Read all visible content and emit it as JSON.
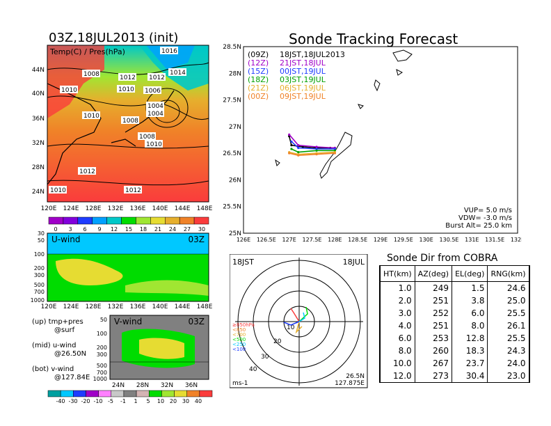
{
  "map_panel": {
    "title": "03Z,18JUL2013 (init)",
    "subtitle": "Temp(C) / Pres(hPa)",
    "lat_labels": [
      "44N",
      "40N",
      "36N",
      "32N",
      "28N",
      "24N"
    ],
    "lon_labels": [
      "120E",
      "124E",
      "128E",
      "132E",
      "136E",
      "140E",
      "144E",
      "148E"
    ],
    "isobar_labels": [
      "1016",
      "1008",
      "1012",
      "1012",
      "1014",
      "1010",
      "1010",
      "1006",
      "1004",
      "1004",
      "1010",
      "1008",
      "1008",
      "1010",
      "1012",
      "1010",
      "1012"
    ],
    "colorbar_ticks": [
      "0",
      "3",
      "6",
      "9",
      "12",
      "15",
      "18",
      "21",
      "24",
      "27",
      "30"
    ],
    "colors": [
      "#a000c8",
      "#8200dc",
      "#1e3cff",
      "#00a0ff",
      "#00c8c8",
      "#00dc00",
      "#a0e632",
      "#e6dc32",
      "#e6af2d",
      "#f08228",
      "#fa3c3c"
    ]
  },
  "uwind_panel": {
    "label": "U-wind",
    "time": "03Z",
    "pressure_labels": [
      "30",
      "50",
      "100",
      "200",
      "300",
      "500",
      "700",
      "1000"
    ],
    "lon_labels": [
      "120E",
      "124E",
      "128E",
      "132E",
      "136E",
      "140E",
      "144E",
      "148E"
    ]
  },
  "vwind_panel": {
    "label": "V-wind",
    "time": "03Z",
    "pressure_labels": [
      "50",
      "100",
      "200",
      "300",
      "500",
      "700",
      "1000"
    ],
    "lat_labels": [
      "24N",
      "28N",
      "32N",
      "36N"
    ]
  },
  "notes": [
    "(up) tmp+pres",
    "@surf",
    "(mid) u-wind",
    "@26.50N",
    "(bot) v-wind",
    "@127.84E"
  ],
  "wind_colorbar": {
    "ticks": [
      "-40",
      "-30",
      "-20",
      "-10",
      "-5",
      "-1",
      "1",
      "5",
      "10",
      "20",
      "30",
      "40"
    ],
    "colors": [
      "#00a0a0",
      "#00c8ff",
      "#1e3cff",
      "#a000c8",
      "#ff80ff",
      "#c8c8c8",
      "#808080",
      "#d4b4b4",
      "#00dc00",
      "#a0e632",
      "#e6dc32",
      "#f08228",
      "#fa3c3c"
    ]
  },
  "tracking": {
    "title": "Sonde Tracking Forecast",
    "legend": [
      {
        "code": "(09Z)",
        "text": "18JST,18JUL2013",
        "color": "#000000"
      },
      {
        "code": "(12Z)",
        "text": "21JST,18JUL",
        "color": "#a000c8"
      },
      {
        "code": "(15Z)",
        "text": "00JST,19JUL",
        "color": "#1e3cff"
      },
      {
        "code": "(18Z)",
        "text": "03JST,19JUL",
        "color": "#00a000"
      },
      {
        "code": "(21Z)",
        "text": "06JST,19JUL",
        "color": "#e6af2d"
      },
      {
        "code": "(00Z)",
        "text": "09JST,19JUL",
        "color": "#f08228"
      }
    ],
    "params": [
      "VUP=  5.0  m/s",
      "VDW= -3.0  m/s",
      "Burst Alt= 25.0  km"
    ],
    "lat_labels": [
      "28.5N",
      "28N",
      "27.5N",
      "27N",
      "26.5N",
      "26N",
      "25.5N",
      "25N"
    ],
    "lon_labels": [
      "126E",
      "126.5E",
      "127E",
      "127.5E",
      "128E",
      "128.5E",
      "129E",
      "129.5E",
      "130E",
      "130.5E",
      "131E",
      "131.5E",
      "132E"
    ]
  },
  "polar": {
    "time_left": "18JST",
    "date_right": "18JUL",
    "ring_labels": [
      "10",
      "20",
      "30",
      "40"
    ],
    "level_labels": [
      "≥850hPa",
      "<850",
      "<700",
      "<500",
      "<250",
      "<100"
    ],
    "level_colors": [
      "#fa3c3c",
      "#f08228",
      "#e6af2d",
      "#00dc00",
      "#00c8ff",
      "#1e3cff"
    ],
    "unit": "ms-1",
    "loc_lat": "26.5N",
    "loc_lon": "127.875E"
  },
  "sonde_table": {
    "title": "Sonde Dir from COBRA",
    "headers": [
      "HT(km)",
      "AZ(deg)",
      "EL(deg)",
      "RNG(km)"
    ],
    "rows": [
      [
        "1.0",
        "249",
        "1.5",
        "24.6"
      ],
      [
        "2.0",
        "251",
        "3.8",
        "25.0"
      ],
      [
        "3.0",
        "252",
        "6.0",
        "25.5"
      ],
      [
        "4.0",
        "251",
        "8.0",
        "26.1"
      ],
      [
        "6.0",
        "253",
        "12.8",
        "25.5"
      ],
      [
        "8.0",
        "260",
        "18.3",
        "24.3"
      ],
      [
        "10.0",
        "267",
        "23.7",
        "24.0"
      ],
      [
        "12.0",
        "273",
        "30.4",
        "23.0"
      ]
    ]
  },
  "chart_data": [
    {
      "type": "line",
      "title": "Sonde Tracking Forecast",
      "xlabel": "",
      "ylabel": "",
      "xlim": [
        126,
        132
      ],
      "ylim": [
        25,
        28.5
      ],
      "series": [
        {
          "name": "18JST,18JUL2013",
          "x": [
            128.0,
            127.9,
            127.6,
            127.3,
            127.05,
            127.0
          ],
          "y": [
            26.6,
            26.6,
            26.6,
            26.62,
            26.65,
            26.82
          ]
        },
        {
          "name": "21JST,18JUL",
          "x": [
            128.0,
            127.6,
            127.2,
            127.0
          ],
          "y": [
            26.6,
            26.62,
            26.65,
            26.85
          ]
        },
        {
          "name": "00JST,19JUL",
          "x": [
            128.0,
            127.6,
            127.2,
            127.05
          ],
          "y": [
            26.58,
            26.58,
            26.6,
            26.72
          ]
        },
        {
          "name": "03JST,19JUL",
          "x": [
            128.0,
            127.6,
            127.2,
            127.05
          ],
          "y": [
            26.55,
            26.55,
            26.52,
            26.58
          ]
        },
        {
          "name": "06JST,19JUL",
          "x": [
            128.0,
            127.6,
            127.2,
            127.0
          ],
          "y": [
            26.52,
            26.5,
            26.48,
            26.52
          ]
        },
        {
          "name": "09JST,19JUL",
          "x": [
            128.0,
            127.6,
            127.2,
            127.0
          ],
          "y": [
            26.5,
            26.48,
            26.46,
            26.5
          ]
        }
      ]
    },
    {
      "type": "table",
      "title": "Sonde Dir from COBRA",
      "columns": [
        "HT(km)",
        "AZ(deg)",
        "EL(deg)",
        "RNG(km)"
      ],
      "rows": [
        [
          1.0,
          249,
          1.5,
          24.6
        ],
        [
          2.0,
          251,
          3.8,
          25.0
        ],
        [
          3.0,
          252,
          6.0,
          25.5
        ],
        [
          4.0,
          251,
          8.0,
          26.1
        ],
        [
          6.0,
          253,
          12.8,
          25.5
        ],
        [
          8.0,
          260,
          18.3,
          24.3
        ],
        [
          10.0,
          267,
          23.7,
          24.0
        ],
        [
          12.0,
          273,
          30.4,
          23.0
        ]
      ]
    }
  ]
}
